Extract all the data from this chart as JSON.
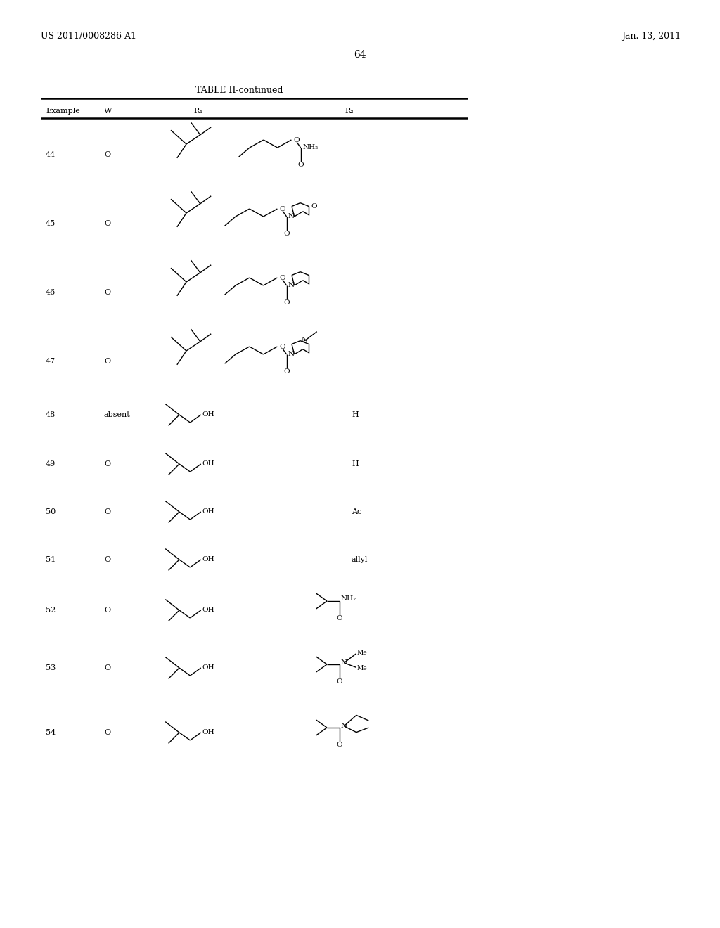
{
  "header_left": "US 2011/0008286 A1",
  "header_right": "Jan. 13, 2011",
  "page_number": "64",
  "table_title": "TABLE II-continued",
  "bg_color": "#ffffff",
  "text_color": "#000000"
}
